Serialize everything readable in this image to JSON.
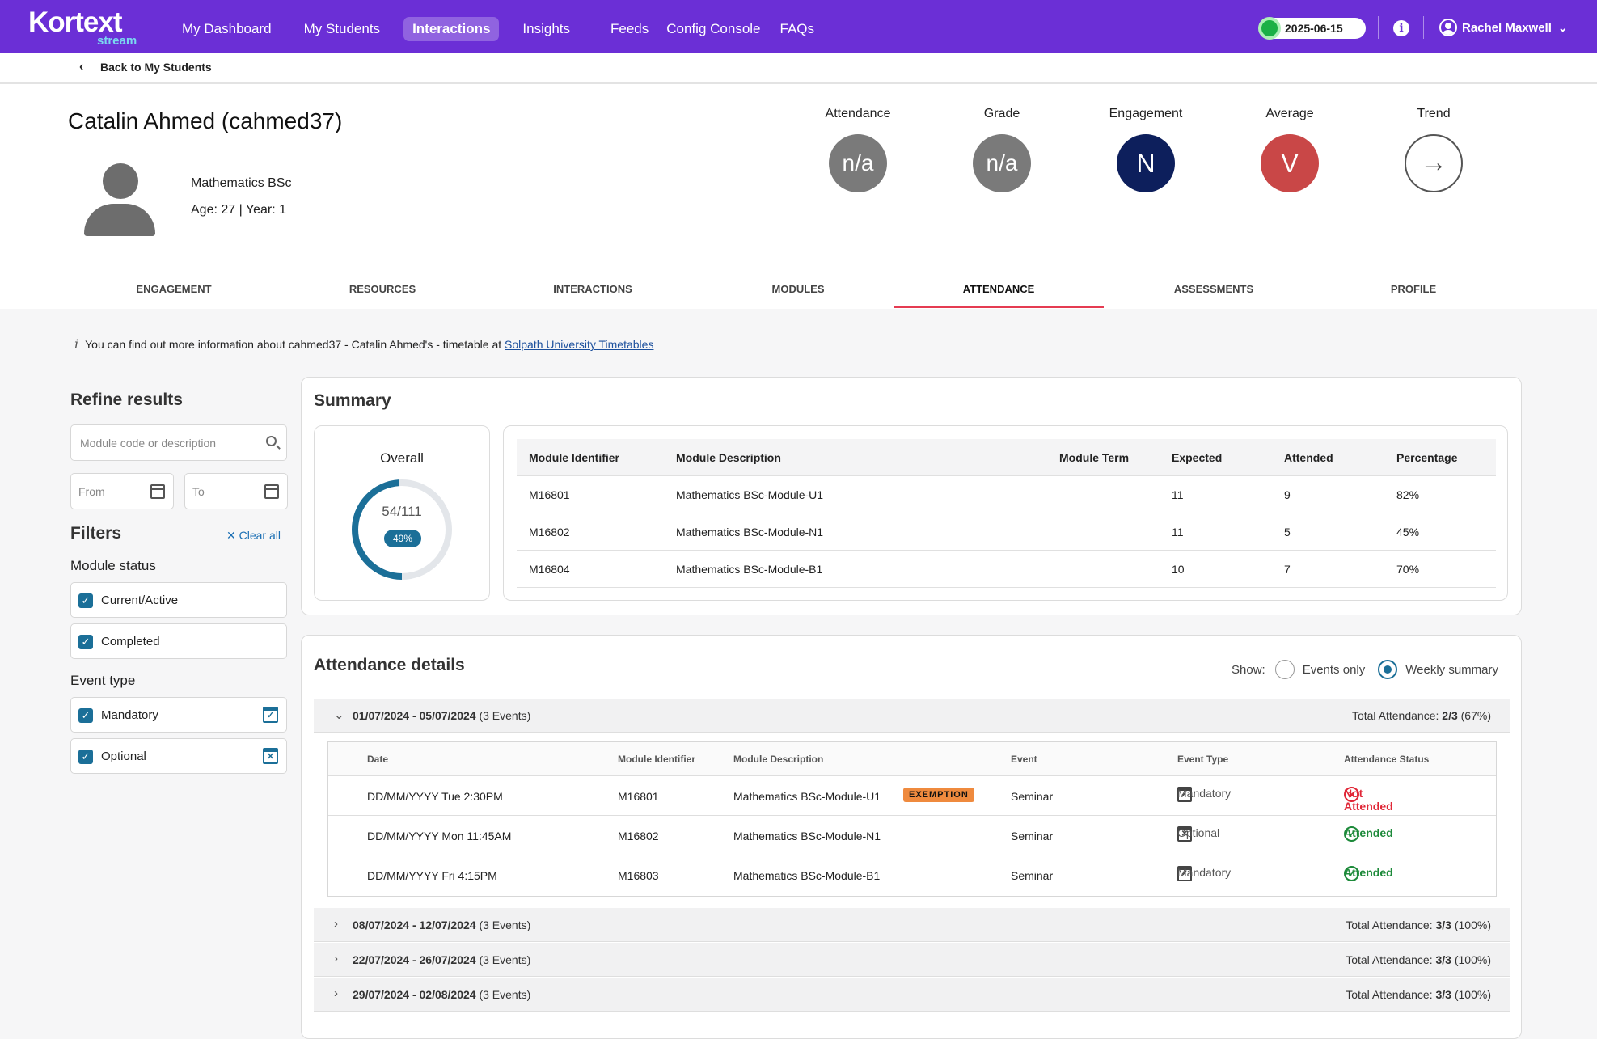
{
  "nav": {
    "logo": "Kortext",
    "logo_sub": "stream",
    "links": [
      "My Dashboard",
      "My Students",
      "Interactions",
      "Insights",
      "Feeds",
      "Config Console",
      "FAQs"
    ],
    "active": "Interactions",
    "date": "2025-06-15",
    "user": "Rachel Maxwell"
  },
  "back": "Back to My Students",
  "student": {
    "name": "Catalin Ahmed (cahmed37)",
    "programme": "Mathematics BSc",
    "age_year": "Age: 27 | Year: 1"
  },
  "metrics": [
    {
      "label": "Attendance",
      "value": "n/a",
      "color": "#7a7a7a"
    },
    {
      "label": "Grade",
      "value": "n/a",
      "color": "#7a7a7a"
    },
    {
      "label": "Engagement",
      "value": "N",
      "color": "#0d1f5c"
    },
    {
      "label": "Average",
      "value": "V",
      "color": "#c94747"
    },
    {
      "label": "Trend",
      "value": "→",
      "color": "#ffffff"
    }
  ],
  "tabs": [
    "ENGAGEMENT",
    "RESOURCES",
    "INTERACTIONS",
    "MODULES",
    "ATTENDANCE",
    "ASSESSMENTS",
    "PROFILE"
  ],
  "active_tab": "ATTENDANCE",
  "notice": {
    "text": "You can find out more information about cahmed37 - Catalin Ahmed's - timetable at ",
    "link": "Solpath University Timetables"
  },
  "sidebar": {
    "title": "Refine results",
    "search_placeholder": "Module code or description",
    "from": "From",
    "to": "To",
    "filters": "Filters",
    "clear_all": "Clear all",
    "module_status": "Module status",
    "status_items": [
      "Current/Active",
      "Completed"
    ],
    "event_type": "Event type",
    "event_items": [
      "Mandatory",
      "Optional"
    ]
  },
  "summary": {
    "title": "Summary",
    "overall_label": "Overall",
    "overall_count": "54/111",
    "overall_pct": "49%",
    "overall_fraction": 0.49,
    "columns": [
      "Module Identifier",
      "Module Description",
      "Module Term",
      "Expected",
      "Attended",
      "Percentage"
    ],
    "rows": [
      [
        "M16801",
        "Mathematics BSc-Module-U1",
        "",
        "11",
        "9",
        "82%"
      ],
      [
        "M16802",
        "Mathematics BSc-Module-N1",
        "",
        "11",
        "5",
        "45%"
      ],
      [
        "M16804",
        "Mathematics BSc-Module-B1",
        "",
        "10",
        "7",
        "70%"
      ]
    ]
  },
  "details": {
    "title": "Attendance details",
    "show_label": "Show:",
    "opt_events": "Events only",
    "opt_weekly": "Weekly summary",
    "selected": "Weekly summary",
    "columns": [
      "Date",
      "Module Identifier",
      "Module Description",
      "Event",
      "Event Type",
      "Attendance Status"
    ],
    "weeks": [
      {
        "range": "01/07/2024 - 05/07/2024",
        "events": "(3 Events)",
        "total_label": "Total Attendance: ",
        "total": "2/3",
        "pct": "(67%)"
      },
      {
        "range": "08/07/2024 - 12/07/2024",
        "events": "(3 Events)",
        "total_label": "Total Attendance: ",
        "total": "3/3",
        "pct": "(100%)"
      },
      {
        "range": "22/07/2024 - 26/07/2024",
        "events": "(3 Events)",
        "total_label": "Total Attendance: ",
        "total": "3/3",
        "pct": "(100%)"
      },
      {
        "range": "29/07/2024 - 02/08/2024",
        "events": "(3 Events)",
        "total_label": "Total Attendance: ",
        "total": "3/3",
        "pct": "(100%)"
      }
    ],
    "events": [
      {
        "date": "DD/MM/YYYY Tue 2:30PM",
        "module": "M16801",
        "desc": "Mathematics BSc-Module-U1",
        "badge": "EXEMPTION",
        "event": "Seminar",
        "type": "Mandatory",
        "status": "Not Attended"
      },
      {
        "date": "DD/MM/YYYY Mon 11:45AM",
        "module": "M16802",
        "desc": "Mathematics BSc-Module-N1",
        "badge": "",
        "event": "Seminar",
        "type": "Optional",
        "status": "Attended"
      },
      {
        "date": "DD/MM/YYYY Fri 4:15PM",
        "module": "M16803",
        "desc": "Mathematics BSc-Module-B1",
        "badge": "",
        "event": "Seminar",
        "type": "Mandatory",
        "status": "Attended"
      }
    ]
  }
}
